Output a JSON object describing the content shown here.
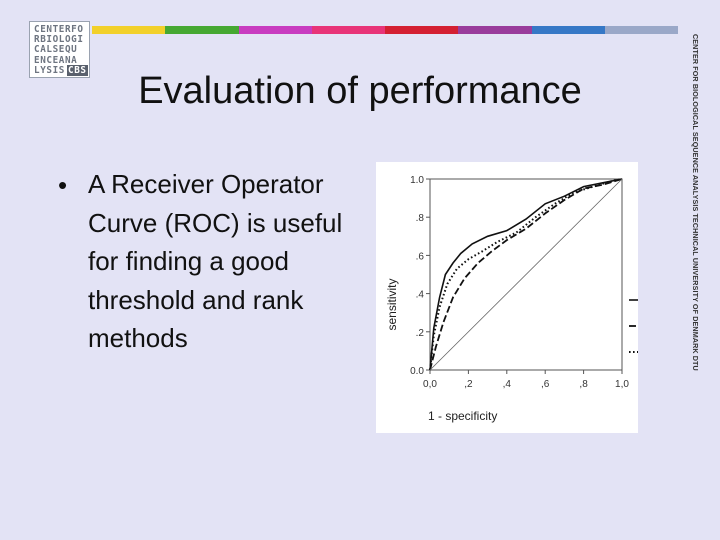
{
  "slide": {
    "title": "Evaluation of performance",
    "bullet_text": "A Receiver Operator Curve (ROC) is useful for finding a good threshold  and rank methods",
    "bullet_marker": "•",
    "side_text": "CENTER FOR BIOLOGICAL SEQUENCE ANALYSIS TECHNICAL UNIVERSITY OF DENMARK DTU",
    "color_bar": [
      "#f2d02a",
      "#46a832",
      "#c83cc0",
      "#e83478",
      "#d42032",
      "#9a3c9c",
      "#3678c6",
      "#9aa8c8"
    ],
    "background_color": "#e3e3f5"
  },
  "logo": {
    "lines": [
      "CENTERFO",
      "RBIOLOGI",
      "CALSEQU",
      "ENCEANA",
      "LYSIS"
    ],
    "badge": "CBS"
  },
  "chart_data": {
    "type": "line",
    "xlabel": "1 - specificity",
    "ylabel": "sensitivity",
    "xlim": [
      0,
      1
    ],
    "ylim": [
      0,
      1
    ],
    "x_tick_labels": [
      "0,0",
      ",2",
      ",4",
      ",6",
      ",8",
      "1,0"
    ],
    "y_tick_labels": [
      "0.0",
      ".2",
      ".4",
      ".6",
      ".8",
      "1.0"
    ],
    "series": [
      {
        "style": "solid",
        "x": [
          0,
          0.02,
          0.05,
          0.08,
          0.12,
          0.16,
          0.22,
          0.3,
          0.4,
          0.5,
          0.6,
          0.7,
          0.8,
          0.9,
          1.0
        ],
        "y": [
          0,
          0.22,
          0.38,
          0.5,
          0.56,
          0.61,
          0.66,
          0.7,
          0.73,
          0.79,
          0.87,
          0.91,
          0.96,
          0.98,
          1.0
        ]
      },
      {
        "style": "dashed",
        "x": [
          0,
          0.03,
          0.07,
          0.12,
          0.18,
          0.25,
          0.32,
          0.4,
          0.5,
          0.6,
          0.7,
          0.8,
          0.9,
          1.0
        ],
        "y": [
          0,
          0.12,
          0.25,
          0.38,
          0.48,
          0.56,
          0.62,
          0.68,
          0.74,
          0.82,
          0.89,
          0.95,
          0.97,
          1.0
        ]
      },
      {
        "style": "dotted",
        "x": [
          0,
          0.02,
          0.05,
          0.09,
          0.14,
          0.2,
          0.27,
          0.35,
          0.45,
          0.55,
          0.65,
          0.75,
          0.85,
          0.95,
          1.0
        ],
        "y": [
          0,
          0.18,
          0.33,
          0.45,
          0.53,
          0.58,
          0.62,
          0.67,
          0.72,
          0.8,
          0.87,
          0.93,
          0.96,
          0.99,
          1.0
        ]
      },
      {
        "style": "thin",
        "x": [
          0,
          1
        ],
        "y": [
          0,
          1
        ]
      }
    ],
    "legend": "right",
    "grid": false
  }
}
